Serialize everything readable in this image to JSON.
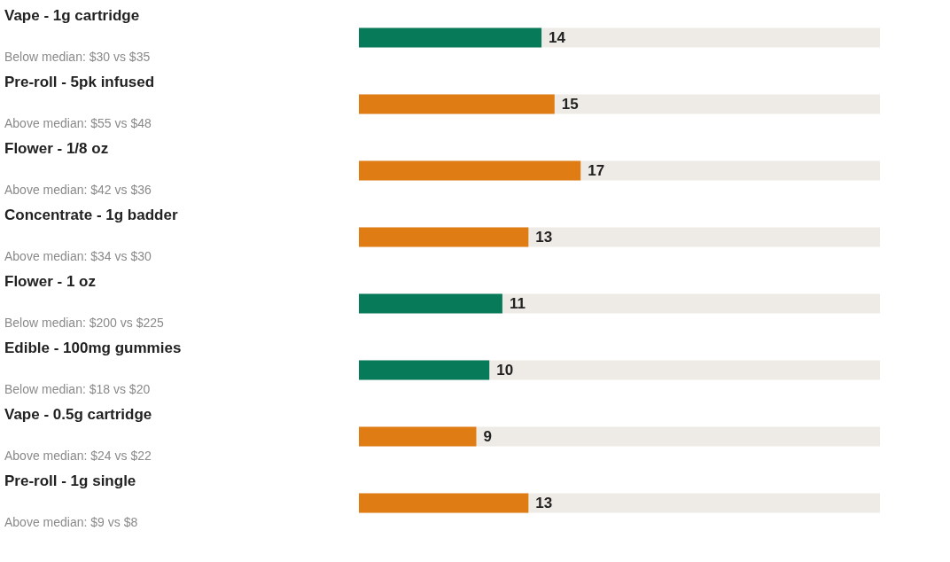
{
  "chart_data": {
    "type": "bar",
    "orientation": "horizontal",
    "data_labels": true,
    "categories": [
      "Vape - 1g cartridge",
      "Pre-roll - 5pk infused",
      "Flower - 1/8 oz",
      "Concentrate - 1g badder",
      "Flower - 1 oz",
      "Edible - 100mg gummies",
      "Vape - 0.5g cartridge",
      "Pre-roll - 1g single"
    ],
    "values": [
      14,
      15,
      17,
      13,
      11,
      10,
      9,
      13
    ],
    "colors": [
      "#077a5a",
      "#e07c14",
      "#e07c14",
      "#e07c14",
      "#077a5a",
      "#077a5a",
      "#e07c14",
      "#e07c14"
    ],
    "annotations": [
      "Below median: $30 vs $35",
      "Above median: $55 vs $48",
      "Above median: $42 vs $36",
      "Above median: $34 vs $30",
      "Below median: $200 vs $225",
      "Below median: $18 vs $20",
      "Above median: $24 vs $22",
      "Above median: $9 vs $8"
    ]
  }
}
